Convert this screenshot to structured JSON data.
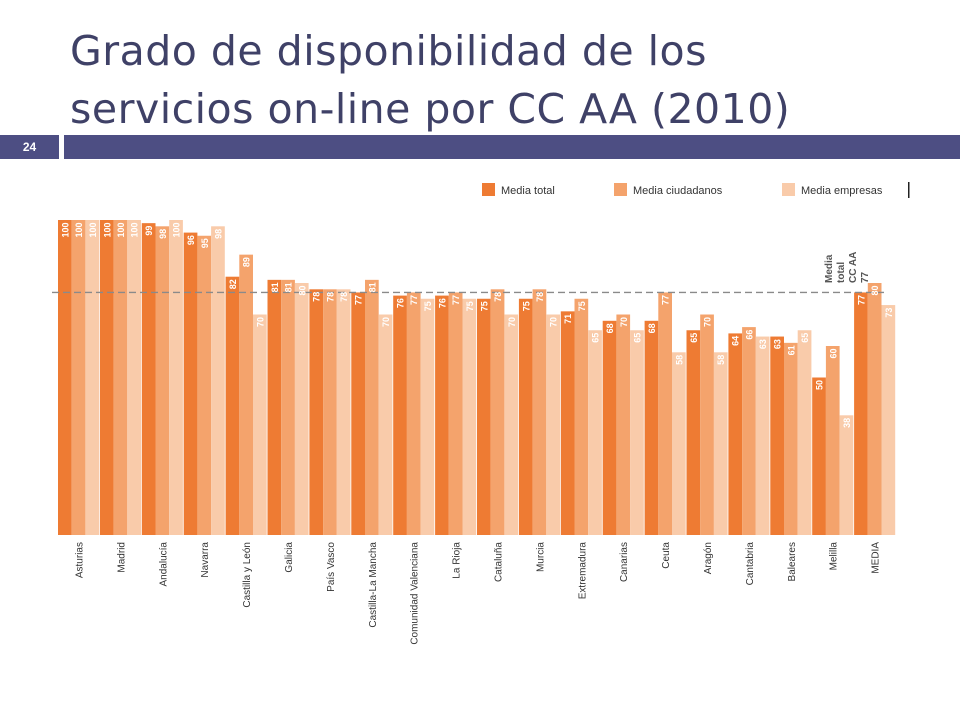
{
  "slide": {
    "title_line1": "Grado de disponibilidad de los",
    "title_line2": "servicios on-line por CC AA (2010)",
    "number": "24"
  },
  "colors": {
    "title_text": "#3f4167",
    "title_bar": "#4d4e83",
    "series": [
      "#ee7b33",
      "#f4a36c",
      "#f9cbaa"
    ],
    "reference_line": "#8a8a8a"
  },
  "chart_data": {
    "type": "bar",
    "title": "",
    "xlabel": "",
    "ylabel": "",
    "ylim": [
      0,
      100
    ],
    "grid": false,
    "legend_placement": "top-right",
    "categories": [
      "Asturias",
      "Madrid",
      "Andalucía",
      "Navarra",
      "Castilla y León",
      "Galicia",
      "País Vasco",
      "Castilla-La Mancha",
      "Comunidad Valenciana",
      "La Rioja",
      "Cataluña",
      "Murcia",
      "Extremadura",
      "Canarias",
      "Ceuta",
      "Aragón",
      "Cantabria",
      "Baleares",
      "Melilla",
      "MEDIA"
    ],
    "series": [
      {
        "name": "Media total",
        "values": [
          100,
          100,
          99,
          96,
          82,
          81,
          78,
          77,
          76,
          76,
          75,
          75,
          71,
          68,
          68,
          65,
          64,
          63,
          50,
          77
        ]
      },
      {
        "name": "Media ciudadanos",
        "values": [
          100,
          100,
          98,
          95,
          89,
          81,
          78,
          81,
          77,
          77,
          78,
          78,
          75,
          70,
          77,
          70,
          66,
          61,
          60,
          80
        ]
      },
      {
        "name": "Media empresas",
        "values": [
          100,
          100,
          100,
          98,
          70,
          80,
          78,
          70,
          75,
          75,
          70,
          70,
          65,
          65,
          58,
          58,
          63,
          65,
          38,
          73
        ]
      }
    ],
    "reference_line": {
      "value": 77,
      "label_lines": [
        "Media",
        "total",
        "CC AA",
        "77"
      ]
    }
  }
}
